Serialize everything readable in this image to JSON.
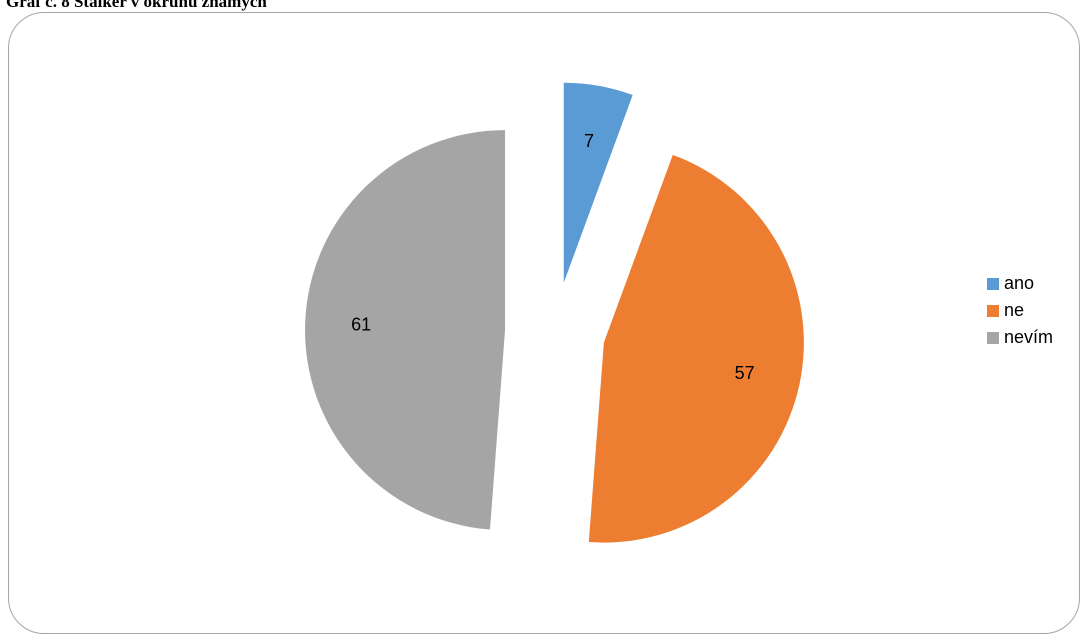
{
  "caption": "Graf č. 8 Stalker v okruhu známých",
  "chart_data": {
    "type": "pie",
    "exploded": true,
    "legend_position": "right",
    "data_labels": true,
    "slices": [
      {
        "label": "ano",
        "value": 7,
        "color": "#5b9bd5"
      },
      {
        "label": "ne",
        "value": 57,
        "color": "#ed7d31"
      },
      {
        "label": "nevím",
        "value": 61,
        "color": "#a5a5a5"
      }
    ]
  }
}
